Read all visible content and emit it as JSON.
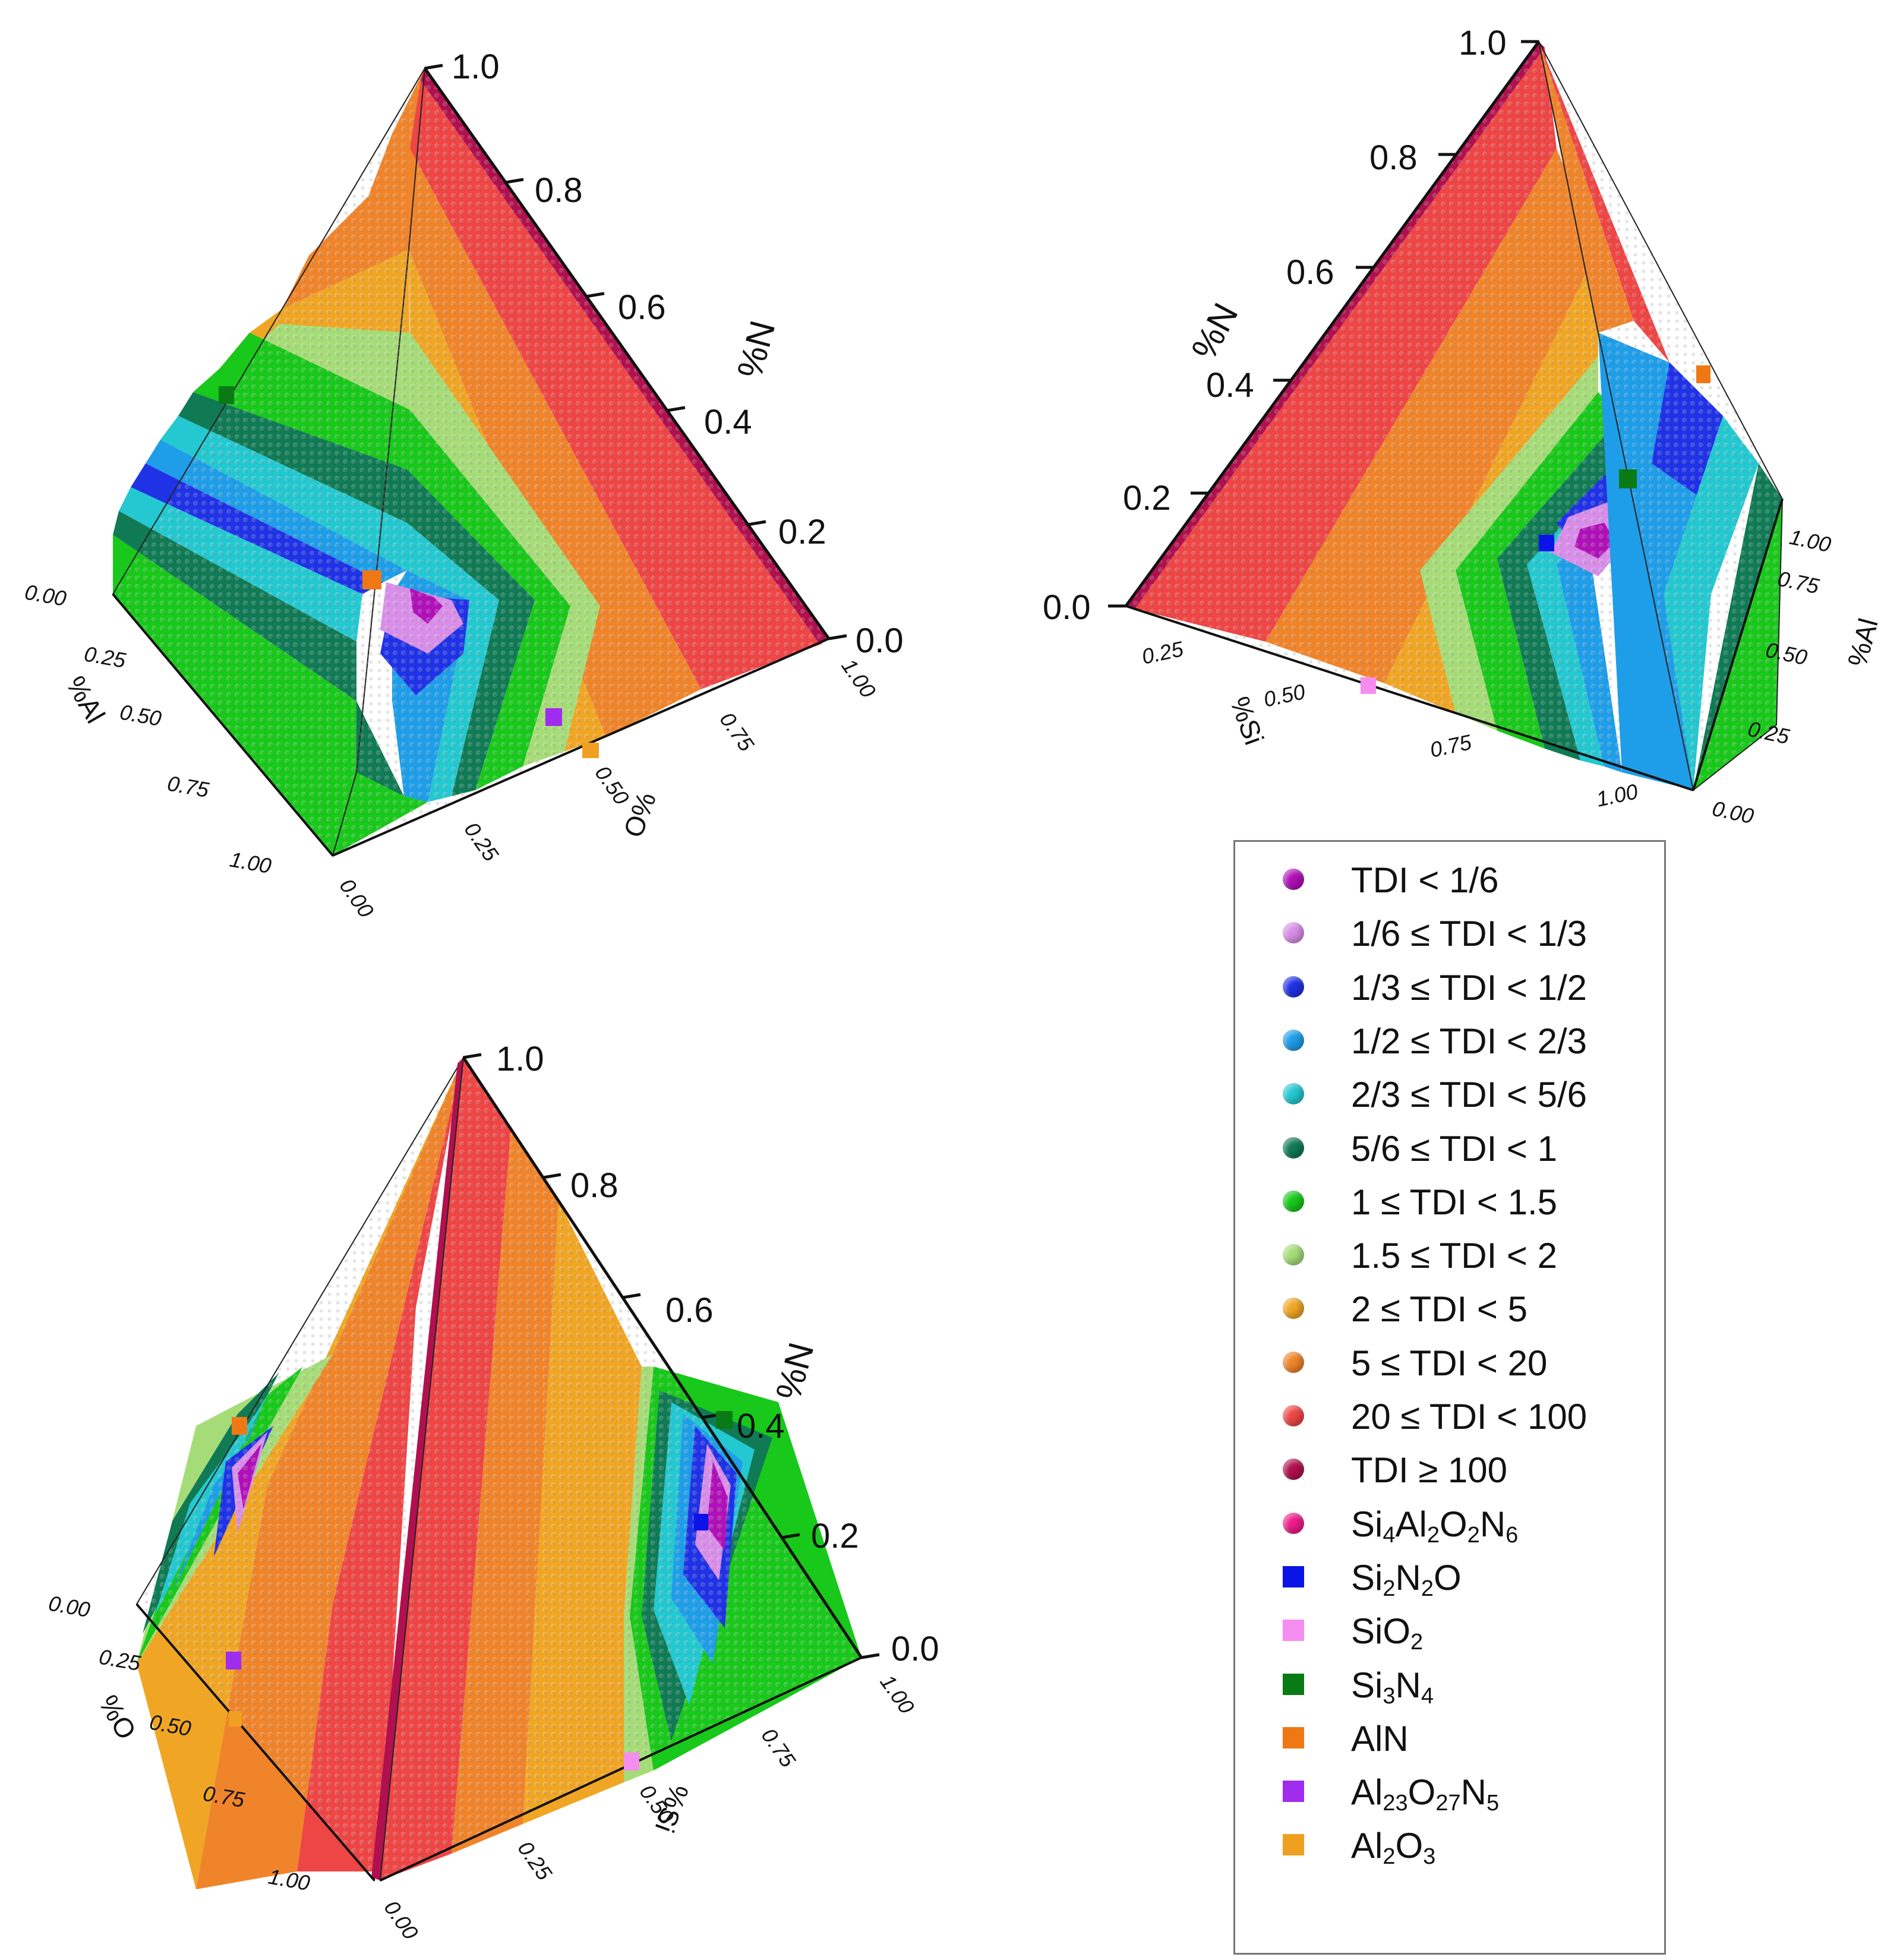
{
  "chart_data": [
    {
      "type": "other",
      "view": "ternary-pyramid",
      "axes": {
        "vertical": {
          "label": "%N",
          "ticks": [
            "1.0",
            "0.8",
            "0.6",
            "0.4",
            "0.2",
            "0.0"
          ]
        },
        "left": {
          "label": "%Al",
          "ticks": [
            "0.00",
            "0.25",
            "0.50",
            "0.75",
            "1.00"
          ]
        },
        "right": {
          "label": "%O",
          "ticks": [
            "0.00",
            "0.25",
            "0.50",
            "0.75",
            "1.00"
          ]
        }
      },
      "markers": [
        {
          "compound": "Si3N4",
          "face": "left-edge",
          "n": 0.45
        },
        {
          "compound": "AlN",
          "face": "center",
          "n": 0.25
        },
        {
          "compound": "Al23O27N5",
          "face": "front",
          "n": 0.1
        },
        {
          "compound": "Al2O3",
          "face": "front",
          "n": 0.0
        }
      ]
    },
    {
      "type": "other",
      "view": "ternary-pyramid",
      "axes": {
        "vertical": {
          "label": "%N",
          "ticks": [
            "1.0",
            "0.8",
            "0.6",
            "0.4",
            "0.2",
            "0.0"
          ]
        },
        "front": {
          "label": "%Si",
          "ticks": [
            "0.25",
            "0.50",
            "0.75",
            "1.00"
          ]
        },
        "right": {
          "label": "%Al",
          "ticks": [
            "0.00",
            "0.25",
            "0.50",
            "0.75",
            "1.00"
          ]
        }
      },
      "markers": [
        {
          "compound": "AlN",
          "face": "right-edge",
          "n": 0.4
        },
        {
          "compound": "Si3N4",
          "face": "right",
          "n": 0.2
        },
        {
          "compound": "Si2N2O",
          "face": "right",
          "n": 0.1
        },
        {
          "compound": "SiO2",
          "face": "front",
          "n": 0.0
        }
      ]
    },
    {
      "type": "other",
      "view": "ternary-pyramid",
      "axes": {
        "vertical": {
          "label": "%N",
          "ticks": [
            "1.0",
            "0.8",
            "0.6",
            "0.4",
            "0.2",
            "0.0"
          ]
        },
        "left": {
          "label": "%O",
          "ticks": [
            "0.00",
            "0.25",
            "0.50",
            "0.75",
            "1.00"
          ]
        },
        "right": {
          "label": "%Si",
          "ticks": [
            "0.00",
            "0.25",
            "0.50",
            "0.75",
            "1.00"
          ]
        }
      },
      "markers": [
        {
          "compound": "AlN",
          "face": "left",
          "n": 0.35
        },
        {
          "compound": "Al23O27N5",
          "face": "left",
          "n": 0.1
        },
        {
          "compound": "Al2O3",
          "face": "left",
          "n": 0.0
        },
        {
          "compound": "Si3N4",
          "face": "right",
          "n": 0.4
        },
        {
          "compound": "Si2N2O",
          "face": "right",
          "n": 0.2
        },
        {
          "compound": "SiO2",
          "face": "right",
          "n": 0.0
        }
      ]
    }
  ],
  "legend": {
    "items": [
      {
        "shape": "sphere",
        "color": "#b010b8",
        "text": "TDI < 1/6"
      },
      {
        "shape": "sphere",
        "color": "#d88ee8",
        "text": "1/6 ≤ TDI < 1/3"
      },
      {
        "shape": "sphere",
        "color": "#1f32e6",
        "text": "1/3 ≤ TDI < 1/2"
      },
      {
        "shape": "sphere",
        "color": "#1e9de8",
        "text": "1/2 ≤ TDI < 2/3"
      },
      {
        "shape": "sphere",
        "color": "#23c8d0",
        "text": "2/3 ≤ TDI < 5/6"
      },
      {
        "shape": "sphere",
        "color": "#107a55",
        "text": "5/6 ≤ TDI < 1"
      },
      {
        "shape": "sphere",
        "color": "#18c81a",
        "text": "1 ≤ TDI < 1.5"
      },
      {
        "shape": "sphere",
        "color": "#a6dc78",
        "text": "1.5 ≤ TDI < 2"
      },
      {
        "shape": "sphere",
        "color": "#f0a624",
        "text": "2 ≤ TDI < 5"
      },
      {
        "shape": "sphere",
        "color": "#f0842a",
        "text": "5 ≤ TDI < 20"
      },
      {
        "shape": "sphere",
        "color": "#ee4545",
        "text": "20 ≤ TDI < 100"
      },
      {
        "shape": "sphere",
        "color": "#b0104e",
        "text": "TDI ≥ 100"
      },
      {
        "shape": "sphere",
        "color": "#ee1a8a",
        "text": "Si4Al2O2N6"
      },
      {
        "shape": "square",
        "color": "#0a14e6",
        "text": "Si2N2O"
      },
      {
        "shape": "square",
        "color": "#f58cf0",
        "text": "SiO2"
      },
      {
        "shape": "square",
        "color": "#0a7a14",
        "text": "Si3N4"
      },
      {
        "shape": "square",
        "color": "#f07814",
        "text": "AlN"
      },
      {
        "shape": "square",
        "color": "#a02cf0",
        "text": "Al23O27N5"
      },
      {
        "shape": "square",
        "color": "#f0a020",
        "text": "Al2O3"
      }
    ]
  }
}
